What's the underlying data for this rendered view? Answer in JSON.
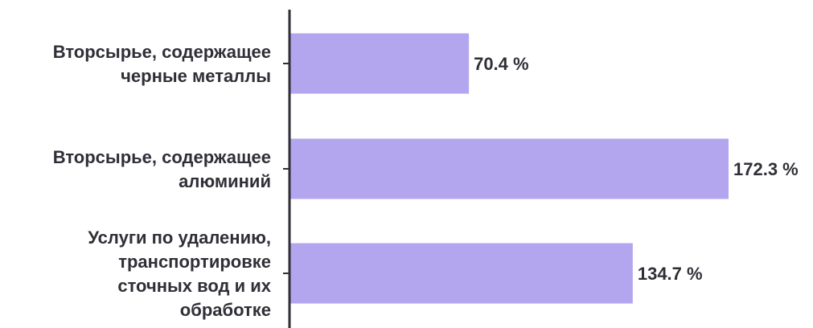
{
  "chart_data": {
    "type": "bar",
    "orientation": "horizontal",
    "categories": [
      [
        "Вторсырье, содержащее",
        "черные металлы"
      ],
      [
        "Вторсырье, содержащее",
        "алюминий"
      ],
      [
        "Услуги по удалению,",
        "транспортировке",
        "сточных вод и их",
        "обработке"
      ]
    ],
    "values": [
      70.4,
      172.3,
      134.7
    ],
    "value_labels": [
      "70.4 %",
      "172.3 %",
      "134.7 %"
    ],
    "xlim": [
      0,
      172.3
    ],
    "colors": {
      "bar": "#b3a6ee",
      "axis": "#2f2f37",
      "text": "#2f2f37"
    },
    "grid": false,
    "legend": "none"
  }
}
